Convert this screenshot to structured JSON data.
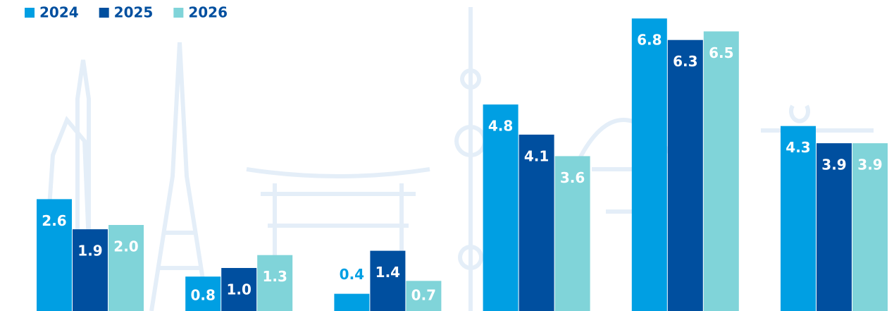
{
  "chart_data": {
    "type": "bar",
    "categories": [
      null,
      null,
      null,
      null,
      null,
      null
    ],
    "series": [
      {
        "name": "2024",
        "color": "#009fe3",
        "values": [
          2.6,
          0.8,
          0.4,
          4.8,
          6.8,
          4.3
        ],
        "value_labels": [
          "2.6",
          "0.8",
          "0.4",
          "4.8",
          "6.8",
          "4.3"
        ]
      },
      {
        "name": "2025",
        "color": "#004f9f",
        "values": [
          1.9,
          1.0,
          1.4,
          4.1,
          6.3,
          3.9
        ],
        "value_labels": [
          "1.9",
          "1.0",
          "1.4",
          "4.1",
          "6.3",
          "3.9"
        ]
      },
      {
        "name": "2026",
        "color": "#80d4d9",
        "values": [
          2.0,
          1.3,
          0.7,
          3.6,
          6.5,
          3.9
        ],
        "value_labels": [
          "2.0",
          "1.3",
          "0.7",
          "3.6",
          "6.5",
          "3.9"
        ]
      }
    ],
    "legend": "top-left"
  }
}
